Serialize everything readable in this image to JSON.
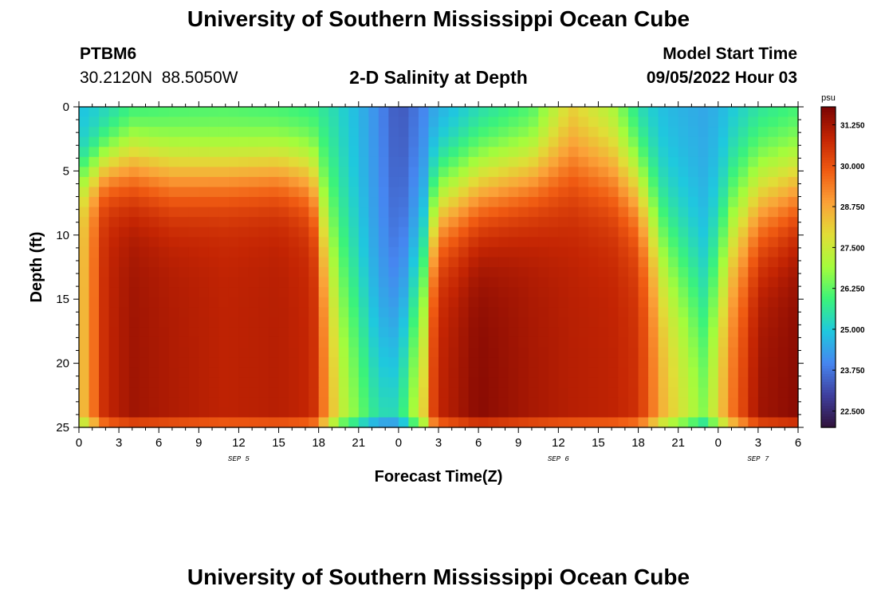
{
  "header": {
    "title": "University of Southern Mississippi Ocean Cube",
    "station": "PTBM6",
    "coords": "30.2120N  88.5050W",
    "subtitle": "2-D Salinity at Depth",
    "model_start_label": "Model Start Time",
    "model_start_value": "09/05/2022 Hour 03"
  },
  "footer": {
    "title": "University of Southern Mississippi Ocean Cube"
  },
  "colors": {
    "ramp": [
      "#30123b",
      "#3f3f9e",
      "#4686f0",
      "#1fc8de",
      "#3bf37a",
      "#a4fc3c",
      "#e1dd37",
      "#fba238",
      "#f05b12",
      "#c42503",
      "#7a0403"
    ]
  },
  "chart_data": {
    "type": "heatmap",
    "title": "2-D Salinity at Depth",
    "xlabel": "Forecast Time(Z)",
    "ylabel": "Depth (ft)",
    "x_range": [
      0,
      54
    ],
    "x_ticks": [
      0,
      3,
      6,
      9,
      12,
      15,
      18,
      21,
      24,
      27,
      30,
      33,
      36,
      39,
      42,
      45,
      48,
      51,
      54
    ],
    "x_tick_labels": [
      "0",
      "3",
      "6",
      "9",
      "12",
      "15",
      "18",
      "21",
      "0",
      "3",
      "6",
      "9",
      "12",
      "15",
      "18",
      "21",
      "0",
      "3",
      "6"
    ],
    "date_labels": [
      {
        "label": "SEP 5",
        "x": 12
      },
      {
        "label": "SEP 6",
        "x": 36
      },
      {
        "label": "SEP 7",
        "x": 51
      }
    ],
    "y_range": [
      0,
      25
    ],
    "y_ticks": [
      0,
      5,
      10,
      15,
      20,
      25
    ],
    "y_tick_labels": [
      "0",
      "5",
      "10",
      "15",
      "20",
      "25"
    ],
    "colorbar": {
      "unit": "psu",
      "range": [
        22.0,
        31.8
      ],
      "ticks": [
        31.25,
        30.0,
        28.75,
        27.5,
        26.25,
        25.0,
        23.75,
        22.5
      ],
      "tick_labels": [
        "31.250",
        "30.000",
        "28.750",
        "27.500",
        "26.250",
        "25.000",
        "23.750",
        "22.500"
      ]
    },
    "field_profiles": [
      {
        "x": 0,
        "surface": 24.8,
        "bottom": 28.0,
        "halocline": 5.5,
        "width": 1.3
      },
      {
        "x": 2,
        "surface": 25.0,
        "bottom": 30.8,
        "halocline": 4.5,
        "width": 1.5
      },
      {
        "x": 4,
        "surface": 25.2,
        "bottom": 31.3,
        "halocline": 4.0,
        "width": 2.0
      },
      {
        "x": 7,
        "surface": 25.6,
        "bottom": 31.1,
        "halocline": 4.8,
        "width": 2.0
      },
      {
        "x": 11,
        "surface": 25.8,
        "bottom": 30.9,
        "halocline": 4.8,
        "width": 1.8
      },
      {
        "x": 15,
        "surface": 25.6,
        "bottom": 31.0,
        "halocline": 4.5,
        "width": 1.8
      },
      {
        "x": 17.5,
        "surface": 25.4,
        "bottom": 30.8,
        "halocline": 5.0,
        "width": 2.0
      },
      {
        "x": 19.5,
        "surface": 25.0,
        "bottom": 27.8,
        "halocline": 12.0,
        "width": 5.0
      },
      {
        "x": 21,
        "surface": 24.6,
        "bottom": 26.8,
        "halocline": 16.0,
        "width": 5.0
      },
      {
        "x": 22.5,
        "surface": 24.0,
        "bottom": 26.0,
        "halocline": 20.0,
        "width": 5.0
      },
      {
        "x": 24,
        "surface": 23.2,
        "bottom": 26.0,
        "halocline": 18.0,
        "width": 5.0
      },
      {
        "x": 26,
        "surface": 23.8,
        "bottom": 28.5,
        "halocline": 12.0,
        "width": 4.0
      },
      {
        "x": 26.8,
        "surface": 24.2,
        "bottom": 30.8,
        "halocline": 7.5,
        "width": 2.5
      },
      {
        "x": 30,
        "surface": 24.8,
        "bottom": 31.6,
        "halocline": 6.0,
        "width": 2.5
      },
      {
        "x": 34,
        "surface": 25.6,
        "bottom": 31.2,
        "halocline": 5.0,
        "width": 2.2
      },
      {
        "x": 37,
        "surface": 27.5,
        "bottom": 31.0,
        "halocline": 4.0,
        "width": 2.5
      },
      {
        "x": 40,
        "surface": 26.5,
        "bottom": 30.9,
        "halocline": 4.5,
        "width": 2.5
      },
      {
        "x": 42,
        "surface": 25.0,
        "bottom": 30.6,
        "halocline": 6.0,
        "width": 2.5
      },
      {
        "x": 44,
        "surface": 24.6,
        "bottom": 28.5,
        "halocline": 11.0,
        "width": 3.5
      },
      {
        "x": 47,
        "surface": 24.4,
        "bottom": 26.8,
        "halocline": 15.0,
        "width": 4.0
      },
      {
        "x": 49,
        "surface": 24.6,
        "bottom": 29.5,
        "halocline": 9.0,
        "width": 3.5
      },
      {
        "x": 51,
        "surface": 25.0,
        "bottom": 31.3,
        "halocline": 7.0,
        "width": 3.0
      },
      {
        "x": 54,
        "surface": 25.5,
        "bottom": 31.6,
        "halocline": 6.0,
        "width": 2.5
      }
    ]
  }
}
